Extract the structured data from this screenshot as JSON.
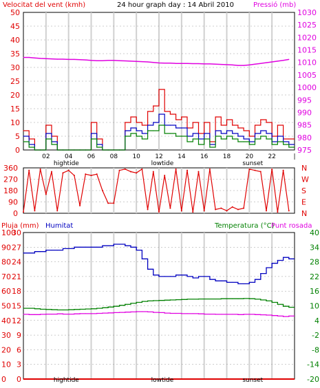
{
  "header": {
    "left_label": "Velocitat del vent (kmh)",
    "title": "24 hour graph day : 14 Abril 2010",
    "right_label": "Pressió (mb)"
  },
  "lower_header": {
    "rain_label": "Pluja (mm)",
    "humidity_label": "Humitat",
    "temp_label": "Temperatura (°C)",
    "dew_label": "Punt rosada"
  },
  "colors": {
    "wind": "#e00000",
    "gust_avg": "#0000c0",
    "wind_avg": "#008000",
    "pressure": "#e000e0",
    "humidity": "#0000c0",
    "temperature": "#008000",
    "dew": "#e000e0",
    "rain": "#e00000",
    "grid": "#d0d0d0",
    "axis": "#000000"
  },
  "x_ticks": [
    "02",
    "04",
    "06",
    "08",
    "10",
    "12",
    "14",
    "16",
    "18",
    "20",
    "22",
    "|"
  ],
  "annotations": [
    {
      "label": "hightide",
      "hour": 3.8
    },
    {
      "label": "lowtide",
      "hour": 12.3
    },
    {
      "label": "sunset",
      "hour": 20.3
    }
  ],
  "chart_data": [
    {
      "type": "line",
      "name": "wind-pressure",
      "ylabel_left": "Velocitat del vent (kmh)",
      "ylabel_right": "Pressió (mb)",
      "ylim_left": [
        0,
        50
      ],
      "ylim_right": [
        975,
        1030
      ],
      "left_ticks": [
        0,
        5,
        10,
        15,
        20,
        25,
        30,
        35,
        40,
        45,
        50
      ],
      "right_ticks": [
        975,
        980,
        985,
        990,
        995,
        1000,
        1005,
        1010,
        1015,
        1020,
        1025,
        1030
      ],
      "hours": [
        0,
        0.5,
        1,
        1.5,
        2,
        2.5,
        3,
        3.5,
        4,
        4.5,
        5,
        5.5,
        6,
        6.5,
        7,
        7.5,
        8,
        8.5,
        9,
        9.5,
        10,
        10.5,
        11,
        11.5,
        12,
        12.5,
        13,
        13.5,
        14,
        14.5,
        15,
        15.5,
        16,
        16.5,
        17,
        17.5,
        18,
        18.5,
        19,
        19.5,
        20,
        20.5,
        21,
        21.5,
        22,
        22.5,
        23,
        23.5
      ],
      "series": [
        {
          "key": "gust",
          "axis": "left",
          "values": [
            7,
            4,
            0,
            0,
            9,
            5,
            0,
            0,
            0,
            0,
            0,
            0,
            10,
            4,
            0,
            0,
            0,
            0,
            10,
            12,
            10,
            9,
            14,
            16,
            22,
            14,
            13,
            11,
            12,
            8,
            10,
            6,
            10,
            3,
            12,
            9,
            11,
            9,
            8,
            7,
            5,
            9,
            11,
            10,
            5,
            9,
            4,
            4
          ]
        },
        {
          "key": "gust_avg",
          "axis": "left",
          "values": [
            5,
            2,
            0,
            0,
            6,
            3,
            0,
            0,
            0,
            0,
            0,
            0,
            6,
            2,
            0,
            0,
            0,
            0,
            7,
            8,
            7,
            6,
            9,
            10,
            13,
            9,
            9,
            8,
            8,
            5,
            6,
            4,
            6,
            2,
            7,
            6,
            7,
            6,
            5,
            4,
            3,
            6,
            7,
            6,
            3,
            5,
            3,
            2
          ]
        },
        {
          "key": "wind_avg",
          "axis": "left",
          "values": [
            3,
            1,
            0,
            0,
            4,
            2,
            0,
            0,
            0,
            0,
            0,
            0,
            4,
            1,
            0,
            0,
            0,
            0,
            5,
            6,
            5,
            4,
            7,
            7,
            9,
            6,
            6,
            5,
            5,
            3,
            4,
            2,
            4,
            1,
            5,
            4,
            5,
            4,
            3,
            3,
            2,
            4,
            5,
            4,
            2,
            3,
            2,
            1
          ]
        },
        {
          "key": "pressure",
          "axis": "right",
          "values": [
            1012,
            1012,
            1011.8,
            1011.6,
            1011.5,
            1011.4,
            1011.3,
            1011.3,
            1011.2,
            1011.2,
            1011.1,
            1011.0,
            1010.8,
            1010.7,
            1010.7,
            1010.8,
            1010.8,
            1010.7,
            1010.6,
            1010.5,
            1010.4,
            1010.3,
            1010.2,
            1010.0,
            1009.8,
            1009.7,
            1009.7,
            1009.6,
            1009.6,
            1009.6,
            1009.5,
            1009.5,
            1009.4,
            1009.4,
            1009.3,
            1009.2,
            1009.1,
            1009.0,
            1008.8,
            1008.8,
            1009.0,
            1009.3,
            1009.6,
            1009.9,
            1010.2,
            1010.5,
            1010.8,
            1011.2
          ]
        }
      ]
    },
    {
      "type": "scatter",
      "name": "wind-direction",
      "ylim": [
        0,
        360
      ],
      "left_ticks": [
        0,
        90,
        180,
        270,
        360
      ],
      "right_ticks": [
        "N",
        "E",
        "S",
        "W",
        "N"
      ],
      "hours": [
        0,
        0.5,
        1,
        1.5,
        2,
        2.5,
        3,
        3.5,
        4,
        4.5,
        5,
        5.5,
        6,
        6.5,
        7,
        7.5,
        8,
        8.5,
        9,
        9.5,
        10,
        10.5,
        11,
        11.5,
        12,
        12.5,
        13,
        13.5,
        14,
        14.5,
        15,
        15.5,
        16,
        16.5,
        17,
        17.5,
        18,
        18.5,
        19,
        19.5,
        20,
        20.5,
        21,
        21.5,
        22,
        22.5,
        23,
        23.5
      ],
      "values": [
        10,
        340,
        20,
        350,
        150,
        330,
        20,
        320,
        340,
        300,
        60,
        310,
        300,
        310,
        180,
        80,
        80,
        340,
        350,
        330,
        320,
        350,
        30,
        330,
        10,
        300,
        40,
        350,
        20,
        340,
        10,
        330,
        20,
        350,
        30,
        40,
        20,
        50,
        30,
        40,
        350,
        340,
        330,
        20,
        350,
        10,
        340,
        20
      ]
    },
    {
      "type": "line",
      "name": "humidity-temperature",
      "left_ticks_rain": [
        0,
        10,
        20,
        30,
        40,
        50,
        60,
        70,
        80,
        90,
        100
      ],
      "left_ticks_hum": [
        0,
        3,
        6,
        9,
        12,
        15,
        18,
        21,
        24,
        27,
        30
      ],
      "right_ticks": [
        -20,
        -14,
        -8,
        -2,
        4,
        10,
        16,
        22,
        28,
        34,
        40
      ],
      "ylim_left": [
        0,
        100
      ],
      "ylim_right": [
        -20,
        40
      ],
      "hours": [
        0,
        0.5,
        1,
        1.5,
        2,
        2.5,
        3,
        3.5,
        4,
        4.5,
        5,
        5.5,
        6,
        6.5,
        7,
        7.5,
        8,
        8.5,
        9,
        9.5,
        10,
        10.5,
        11,
        11.5,
        12,
        12.5,
        13,
        13.5,
        14,
        14.5,
        15,
        15.5,
        16,
        16.5,
        17,
        17.5,
        18,
        18.5,
        19,
        19.5,
        20,
        20.5,
        21,
        21.5,
        22,
        22.5,
        23,
        23.5
      ],
      "series": [
        {
          "key": "humidity",
          "axis": "left",
          "values": [
            86,
            86,
            87,
            87,
            88,
            88,
            88,
            89,
            89,
            90,
            90,
            90,
            90,
            90,
            91,
            91,
            92,
            92,
            91,
            90,
            88,
            82,
            75,
            71,
            70,
            70,
            70,
            71,
            71,
            70,
            69,
            70,
            70,
            68,
            67,
            67,
            66,
            66,
            65,
            65,
            66,
            68,
            72,
            76,
            79,
            81,
            83,
            82
          ]
        },
        {
          "key": "temperature",
          "axis": "right",
          "values": [
            9,
            9,
            8.8,
            8.6,
            8.5,
            8.4,
            8.3,
            8.3,
            8.4,
            8.5,
            8.6,
            8.7,
            8.8,
            9,
            9.2,
            9.5,
            9.8,
            10.2,
            10.6,
            11,
            11.4,
            11.8,
            12,
            12.1,
            12.2,
            12.3,
            12.4,
            12.5,
            12.6,
            12.7,
            12.7,
            12.8,
            12.8,
            12.8,
            12.8,
            12.9,
            12.9,
            12.9,
            12.9,
            13,
            12.9,
            12.7,
            12.4,
            12,
            11.4,
            10.6,
            9.8,
            9.4
          ]
        },
        {
          "key": "dew",
          "axis": "right",
          "values": [
            6.5,
            6.4,
            6.4,
            6.5,
            6.6,
            6.6,
            6.7,
            6.6,
            6.6,
            6.7,
            6.8,
            6.8,
            6.8,
            6.9,
            7,
            7.1,
            7.2,
            7.3,
            7.4,
            7.5,
            7.6,
            7.6,
            7.5,
            7.3,
            7.2,
            7.0,
            6.9,
            6.9,
            6.8,
            6.8,
            6.8,
            6.7,
            6.6,
            6.6,
            6.5,
            6.5,
            6.5,
            6.5,
            6.4,
            6.5,
            6.5,
            6.4,
            6.3,
            6.2,
            6.0,
            5.8,
            5.6,
            5.8
          ]
        },
        {
          "key": "rain",
          "axis": "left",
          "values": [
            0,
            0,
            0,
            0,
            0,
            0,
            0,
            0,
            0,
            0,
            0,
            0,
            0,
            0,
            0,
            0,
            0,
            0,
            0,
            0,
            0,
            0,
            0,
            0,
            0,
            0,
            0,
            0,
            0,
            0,
            0,
            0,
            0,
            0,
            0,
            0,
            0,
            0,
            0,
            0,
            0,
            0,
            0,
            0,
            0,
            0,
            0,
            0
          ]
        }
      ]
    }
  ]
}
